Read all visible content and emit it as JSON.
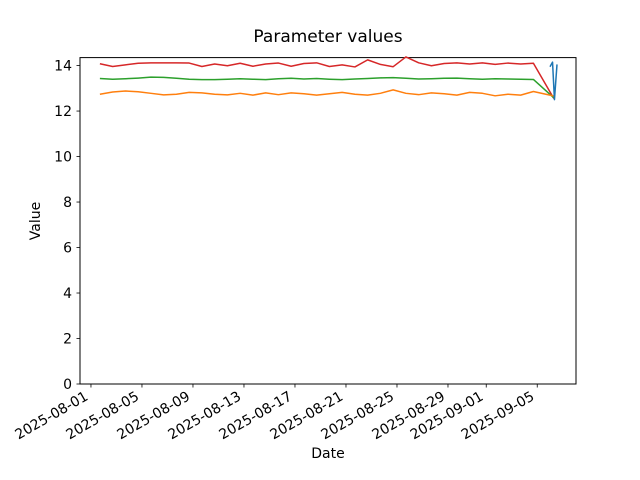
{
  "figure": {
    "colors": {
      "background": "#ffffff",
      "spine": "#000000",
      "text": "#000000"
    }
  },
  "chart_data": {
    "type": "line",
    "title": "Parameter values",
    "xlabel": "Date",
    "ylabel": "Value",
    "grid": false,
    "legend": null,
    "x_unit": "days since 2025-08-01",
    "xlim": [
      -0.86,
      38.04
    ],
    "ylim": [
      0,
      14.35
    ],
    "x_ticks": [
      {
        "t": 0,
        "label": "2025-08-01"
      },
      {
        "t": 4,
        "label": "2025-08-05"
      },
      {
        "t": 8,
        "label": "2025-08-09"
      },
      {
        "t": 12,
        "label": "2025-08-13"
      },
      {
        "t": 16,
        "label": "2025-08-17"
      },
      {
        "t": 20,
        "label": "2025-08-21"
      },
      {
        "t": 24,
        "label": "2025-08-25"
      },
      {
        "t": 28,
        "label": "2025-08-29"
      },
      {
        "t": 31,
        "label": "2025-09-01"
      },
      {
        "t": 35,
        "label": "2025-09-05"
      }
    ],
    "x_tick_label_rotation_deg": 30,
    "y_ticks": [
      0,
      2,
      4,
      6,
      8,
      10,
      12,
      14
    ],
    "series": [
      {
        "name": "red-series",
        "color": "#d62728",
        "x": [
          0.7,
          1.7,
          2.7,
          3.7,
          4.7,
          5.7,
          6.7,
          7.7,
          8.7,
          9.7,
          10.7,
          11.7,
          12.7,
          13.7,
          14.7,
          15.7,
          16.7,
          17.7,
          18.7,
          19.7,
          20.7,
          21.7,
          22.7,
          23.7,
          24.7,
          25.7,
          26.7,
          27.7,
          28.7,
          29.7,
          30.7,
          31.7,
          32.7,
          33.7,
          34.7,
          36.3
        ],
        "y": [
          14.08,
          13.96,
          14.03,
          14.1,
          14.12,
          14.12,
          14.12,
          14.11,
          13.96,
          14.07,
          13.99,
          14.1,
          13.97,
          14.07,
          14.11,
          13.97,
          14.09,
          14.12,
          13.96,
          14.03,
          13.94,
          14.25,
          14.05,
          13.95,
          14.38,
          14.12,
          13.99,
          14.09,
          14.12,
          14.07,
          14.12,
          14.05,
          14.11,
          14.07,
          14.1,
          12.55
        ]
      },
      {
        "name": "green-series",
        "color": "#2ca02c",
        "x": [
          0.7,
          1.7,
          2.7,
          3.7,
          4.7,
          5.7,
          6.7,
          7.7,
          8.7,
          9.7,
          10.7,
          11.7,
          12.7,
          13.7,
          14.7,
          15.7,
          16.7,
          17.7,
          18.7,
          19.7,
          20.7,
          21.7,
          22.7,
          23.7,
          24.7,
          25.7,
          26.7,
          27.7,
          28.7,
          29.7,
          30.7,
          31.7,
          32.7,
          33.7,
          34.7,
          36.3
        ],
        "y": [
          13.43,
          13.4,
          13.42,
          13.45,
          13.49,
          13.48,
          13.44,
          13.4,
          13.38,
          13.38,
          13.4,
          13.42,
          13.4,
          13.38,
          13.42,
          13.44,
          13.41,
          13.43,
          13.4,
          13.38,
          13.41,
          13.43,
          13.46,
          13.47,
          13.44,
          13.41,
          13.42,
          13.44,
          13.45,
          13.42,
          13.4,
          13.42,
          13.41,
          13.4,
          13.39,
          12.58
        ]
      },
      {
        "name": "orange-series",
        "color": "#ff7f0e",
        "x": [
          0.7,
          1.7,
          2.7,
          3.7,
          4.7,
          5.7,
          6.7,
          7.7,
          8.7,
          9.7,
          10.7,
          11.7,
          12.7,
          13.7,
          14.7,
          15.7,
          16.7,
          17.7,
          18.7,
          19.7,
          20.7,
          21.7,
          22.7,
          23.7,
          24.7,
          25.7,
          26.7,
          27.7,
          28.7,
          29.7,
          30.7,
          31.7,
          32.7,
          33.7,
          34.7,
          36.3
        ],
        "y": [
          12.74,
          12.84,
          12.88,
          12.85,
          12.78,
          12.71,
          12.74,
          12.82,
          12.8,
          12.74,
          12.71,
          12.78,
          12.7,
          12.8,
          12.72,
          12.8,
          12.76,
          12.7,
          12.76,
          12.82,
          12.74,
          12.7,
          12.78,
          12.93,
          12.78,
          12.72,
          12.8,
          12.76,
          12.7,
          12.82,
          12.78,
          12.67,
          12.74,
          12.7,
          12.86,
          12.66
        ]
      },
      {
        "name": "blue-series",
        "color": "#1f77b4",
        "x": [
          36.0,
          36.2,
          36.35,
          36.55
        ],
        "y": [
          13.95,
          14.15,
          12.5,
          14.05
        ]
      }
    ]
  }
}
